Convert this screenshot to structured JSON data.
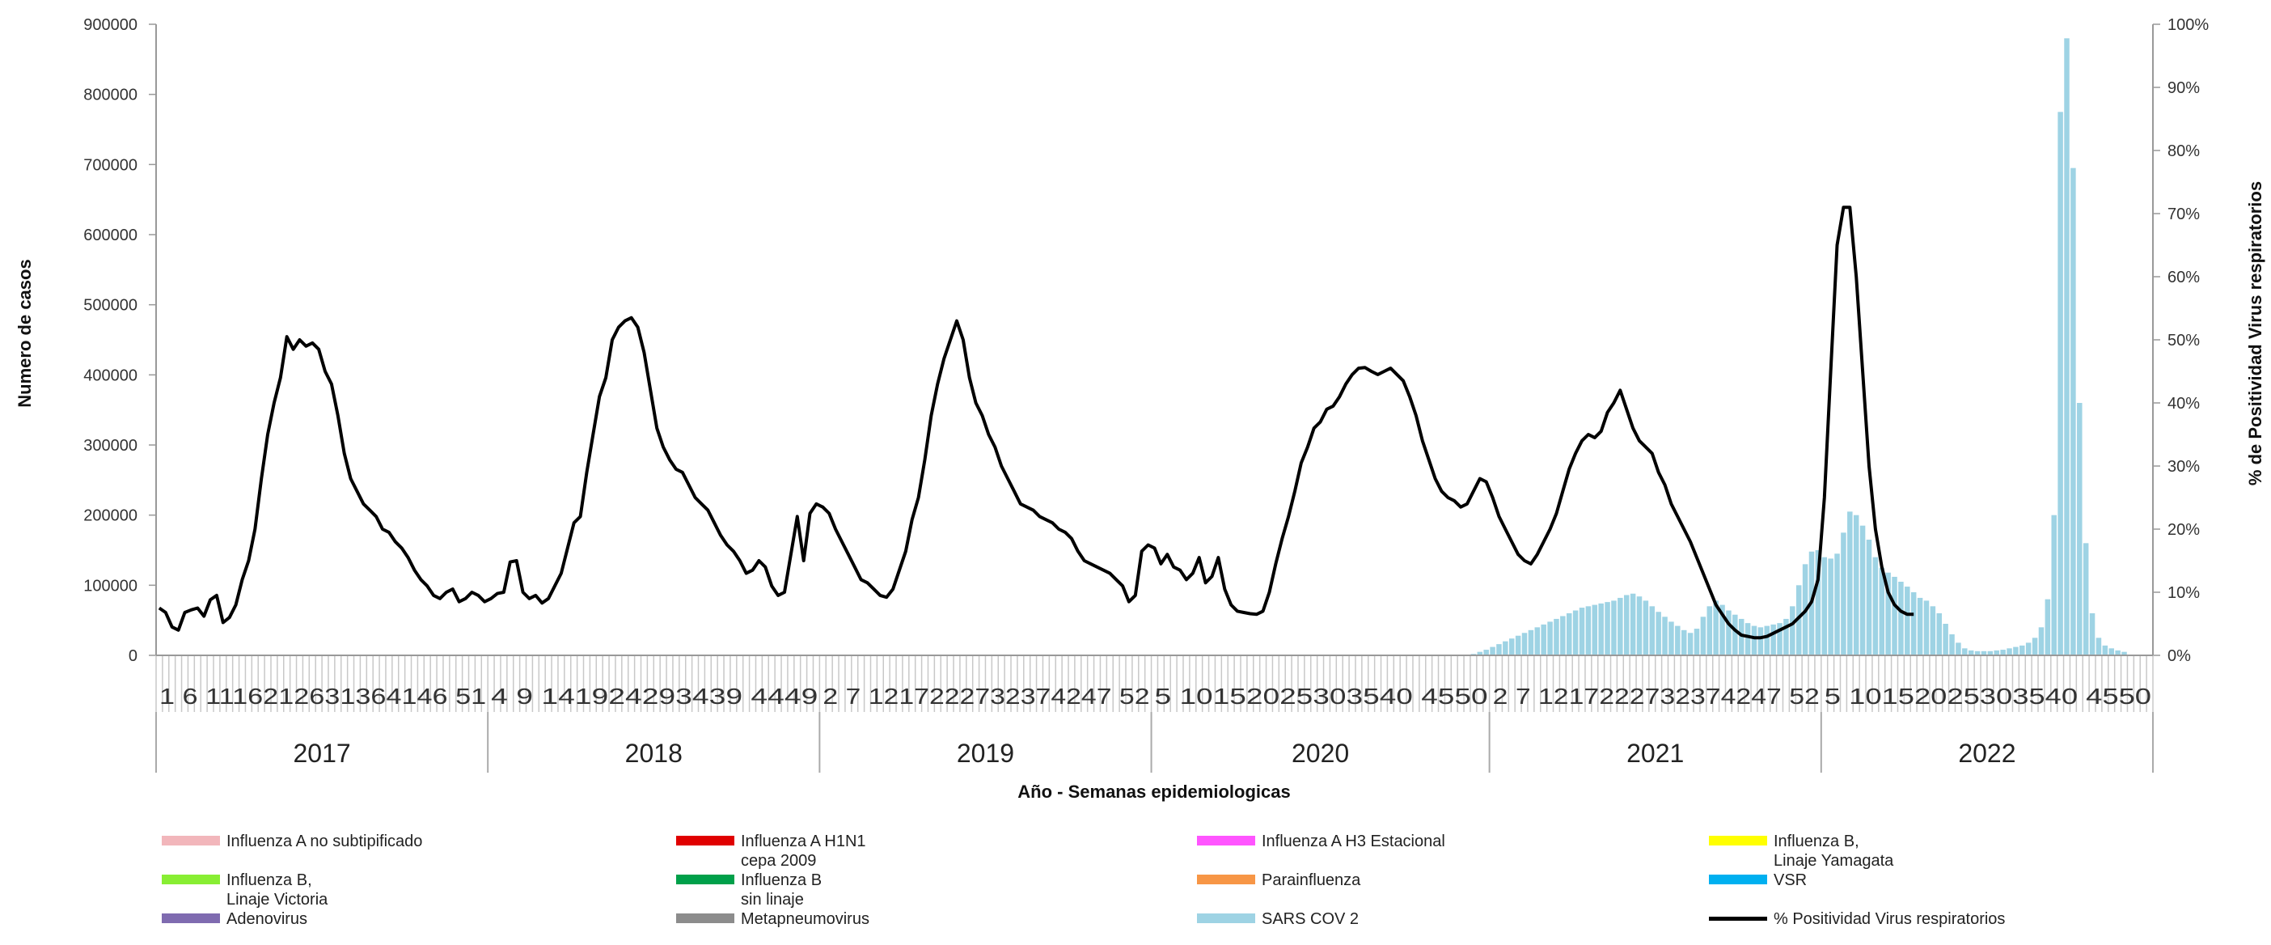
{
  "chart_data": {
    "type": "bar",
    "title": "",
    "xlabel": "Año - Semanas epidemiologicas",
    "ylabel": "Numero de casos",
    "y2label": "% de Positividad Virus respiratorios",
    "ylim": [
      0,
      900000
    ],
    "y2lim": [
      0,
      100
    ],
    "yticks": [
      "0",
      "100000",
      "200000",
      "300000",
      "400000",
      "500000",
      "600000",
      "700000",
      "800000",
      "900000"
    ],
    "y2ticks": [
      "0%",
      "10%",
      "20%",
      "30%",
      "40%",
      "50%",
      "60%",
      "70%",
      "80%",
      "90%",
      "100%"
    ],
    "years": [
      "2017",
      "2018",
      "2019",
      "2020",
      "2021",
      "2022"
    ],
    "week_label_rows": [
      "1  6 1116212631364146 51",
      " 4  9 141924293439 4449",
      " 2  7 1217222732374247 52",
      " 5  10152025303540 4550",
      " 2  7 1217222732374247 52",
      " 5  10152025303540 4550"
    ],
    "series": [
      {
        "name": "SARS COV 2",
        "type": "bar",
        "color": "#9ED3E4",
        "start_index": 206,
        "values": [
          2000,
          5000,
          8000,
          12000,
          16000,
          20000,
          24000,
          28000,
          32000,
          36000,
          40000,
          44000,
          48000,
          52000,
          56000,
          60000,
          64000,
          68000,
          70000,
          72000,
          74000,
          76000,
          78000,
          82000,
          86000,
          88000,
          84000,
          78000,
          70000,
          62000,
          55000,
          48000,
          42000,
          36000,
          32000,
          38000,
          55000,
          70000,
          78000,
          72000,
          64000,
          58000,
          52000,
          46000,
          42000,
          40000,
          42000,
          44000,
          46000,
          52000,
          70000,
          100000,
          130000,
          148000,
          150000,
          140000,
          138000,
          145000,
          175000,
          205000,
          200000,
          185000,
          165000,
          140000,
          125000,
          118000,
          112000,
          105000,
          98000,
          90000,
          82000,
          78000,
          70000,
          60000,
          45000,
          30000,
          18000,
          10000,
          7000,
          6000,
          6000,
          6000,
          7000,
          8000,
          10000,
          12000,
          14000,
          18000,
          25000,
          40000,
          80000,
          200000,
          775000,
          880000,
          695000,
          360000,
          160000,
          60000,
          25000,
          14000,
          10000,
          7000,
          5000
        ]
      },
      {
        "name": "% Positividad Virus respiratorios",
        "type": "line",
        "axis": "y2",
        "color": "#000000",
        "start_index": 0,
        "values": [
          7.5,
          6.8,
          4.5,
          4,
          6.8,
          7.2,
          7.5,
          6.2,
          8.8,
          9.5,
          5.2,
          6,
          8,
          12,
          15,
          20,
          28,
          35,
          40,
          44,
          50.5,
          48.5,
          50,
          49,
          49.5,
          48.5,
          45,
          43,
          38,
          32,
          28,
          26,
          24,
          23,
          22,
          20,
          19.5,
          18,
          17,
          15.5,
          13.5,
          12,
          11,
          9.5,
          9,
          10,
          10.5,
          8.5,
          9,
          10,
          9.5,
          8.5,
          9,
          9.8,
          10,
          14.8,
          15,
          10,
          9,
          9.5,
          8.3,
          9,
          11,
          13,
          17,
          21,
          22,
          29,
          35,
          41,
          44,
          50,
          52,
          53,
          53.5,
          52,
          48,
          42,
          36,
          33,
          31,
          29.5,
          29,
          27,
          25,
          24,
          23,
          21,
          19,
          17.5,
          16.5,
          15,
          13,
          13.5,
          15,
          14,
          11,
          9.5,
          10,
          16,
          22,
          15,
          22.5,
          24,
          23.5,
          22.5,
          20,
          18,
          16,
          14,
          12,
          11.5,
          10.5,
          9.5,
          9.2,
          10.5,
          13.5,
          16.5,
          21.5,
          25,
          31,
          38,
          43,
          47,
          50,
          53,
          50,
          44,
          40,
          38,
          35,
          33,
          30,
          28,
          26,
          24,
          23.5,
          23,
          22,
          21.5,
          21,
          20,
          19.5,
          18.5,
          16.5,
          15,
          14.5,
          14,
          13.5,
          13,
          12,
          11,
          8.5,
          9.5,
          16.5,
          17.5,
          17,
          14.5,
          16,
          14,
          13.5,
          12,
          13,
          15.5,
          11.5,
          12.5,
          15.5,
          10.5,
          8,
          7,
          6.8,
          6.6,
          6.5,
          7,
          10,
          14.5,
          18.5,
          22,
          26,
          30.5,
          33,
          36,
          37,
          39,
          39.5,
          41,
          43,
          44.5,
          45.5,
          45.6,
          45,
          44.5,
          45,
          45.5,
          44.5,
          43.5,
          41,
          38,
          34,
          31,
          28,
          26,
          25,
          24.5,
          23.5,
          24,
          26,
          28,
          27.5,
          25,
          22,
          20,
          18,
          16,
          15,
          14.5,
          16,
          18,
          20,
          22.5,
          26,
          29.5,
          32,
          34,
          35,
          34.5,
          35.5,
          38.5,
          40,
          42,
          39,
          36,
          34,
          33,
          32,
          29,
          27,
          24,
          22,
          20,
          18,
          15.5,
          13,
          10.5,
          8,
          6.5,
          5,
          4,
          3.2,
          3,
          2.8,
          2.8,
          3,
          3.5,
          4,
          4.5,
          5,
          6,
          7,
          8.5,
          12,
          25,
          45,
          65,
          71,
          71,
          60,
          45,
          30,
          20,
          14,
          10,
          8,
          7,
          6.5,
          6.5
        ]
      }
    ],
    "legend": [
      {
        "name": "Influenza A no subtipificado",
        "color": "#F2B6BB"
      },
      {
        "name": "Influenza A H1N1\ncepa 2009",
        "color": "#E00000"
      },
      {
        "name": "Influenza A H3 Estacional",
        "color": "#FF55FF"
      },
      {
        "name": "Influenza B,\nLinaje Yamagata",
        "color": "#FFFF00"
      },
      {
        "name": "Influenza B,\nLinaje Victoria",
        "color": "#88EE33"
      },
      {
        "name": "Influenza B\nsin linaje",
        "color": "#00A04A"
      },
      {
        "name": "Parainfluenza",
        "color": "#F79646"
      },
      {
        "name": "VSR",
        "color": "#00B0F0"
      },
      {
        "name": "Adenovirus",
        "color": "#7F6BB0"
      },
      {
        "name": "Metapneumovirus",
        "color": "#8C8C8C"
      },
      {
        "name": "SARS COV 2",
        "color": "#9ED3E4"
      },
      {
        "name": "% Positividad Virus respiratorios",
        "color": "#000000"
      }
    ],
    "grid": false,
    "legend_placement": "bottom"
  }
}
